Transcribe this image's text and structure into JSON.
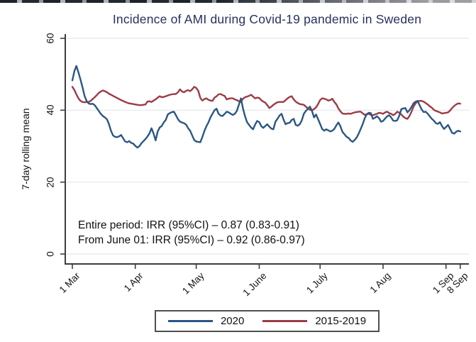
{
  "chart_data": {
    "type": "line",
    "title": "Incidence of AMI during Covid-19 pandemic in Sweden",
    "ylabel": "7-day rolling mean",
    "xlabel": "",
    "ylim": [
      0,
      60
    ],
    "y_ticks": [
      0,
      20,
      40,
      60
    ],
    "x_ticks": [
      {
        "label": "1 Mar",
        "day": 0
      },
      {
        "label": "1 Apr",
        "day": 31
      },
      {
        "label": "1 May",
        "day": 61
      },
      {
        "label": "1 June",
        "day": 92
      },
      {
        "label": "1 July",
        "day": 122
      },
      {
        "label": "1 Aug",
        "day": 153
      },
      {
        "label": "1 Sep",
        "day": 184
      },
      {
        "label": "8 Sep",
        "day": 191
      }
    ],
    "grid": true,
    "legend_position": "bottom",
    "annotations": [
      "Entire period: IRR (95%CI) – 0.87 (0.83-0.91)",
      "From June 01: IRR (95%CI) – 0.92 (0.86-0.97)"
    ],
    "series": [
      {
        "name": "2020",
        "color": "#2a5784",
        "day_start": 0,
        "values": [
          48.3,
          50.9,
          52.3,
          50.5,
          48.5,
          46.4,
          44.0,
          42.6,
          41.9,
          41.7,
          41.8,
          41.4,
          40.6,
          39.8,
          39.0,
          38.4,
          38.0,
          37.5,
          36.2,
          34.3,
          33.0,
          32.6,
          32.5,
          32.7,
          33.1,
          32.2,
          31.3,
          31.1,
          31.4,
          30.9,
          30.7,
          30.1,
          29.6,
          30.0,
          30.8,
          31.4,
          32.0,
          32.7,
          33.6,
          35.0,
          33.5,
          31.6,
          34.0,
          35.2,
          35.6,
          36.6,
          37.3,
          38.8,
          39.2,
          39.5,
          39.6,
          38.6,
          37.5,
          36.8,
          36.6,
          36.4,
          36.0,
          35.0,
          34.3,
          33.0,
          31.7,
          31.3,
          31.2,
          31.1,
          32.5,
          34.2,
          35.5,
          36.6,
          38.0,
          39.0,
          40.0,
          40.4,
          39.0,
          38.5,
          38.4,
          39.0,
          39.6,
          39.4,
          39.0,
          38.7,
          39.0,
          39.8,
          41.5,
          43.3,
          40.5,
          38.4,
          36.7,
          35.9,
          35.2,
          34.7,
          36.0,
          37.0,
          36.7,
          35.6,
          35.1,
          35.6,
          36.1,
          35.4,
          34.9,
          34.7,
          36.8,
          37.6,
          38.5,
          39.0,
          37.4,
          36.1,
          36.4,
          36.5,
          37.3,
          37.6,
          35.9,
          35.7,
          36.1,
          37.2,
          39.0,
          39.8,
          40.4,
          41.0,
          39.8,
          38.0,
          38.8,
          37.5,
          36.2,
          34.8,
          34.3,
          34.7,
          34.4,
          34.1,
          34.3,
          34.8,
          35.8,
          36.6,
          35.5,
          34.0,
          33.3,
          32.6,
          32.3,
          31.6,
          31.2,
          31.7,
          32.4,
          33.5,
          34.8,
          36.2,
          37.8,
          38.9,
          39.3,
          39.2,
          37.6,
          37.9,
          38.3,
          37.8,
          36.8,
          37.0,
          37.7,
          38.3,
          38.6,
          38.0,
          37.1,
          37.0,
          37.2,
          38.5,
          40.3,
          40.5,
          40.6,
          39.4,
          40.0,
          40.9,
          41.9,
          42.4,
          42.6,
          41.4,
          40.2,
          39.5,
          39.6,
          39.0,
          38.3,
          37.6,
          37.1,
          36.4,
          36.2,
          36.7,
          35.6,
          34.8,
          35.3,
          35.9,
          34.8,
          33.7,
          33.5,
          34.0,
          34.3,
          34.1
        ]
      },
      {
        "name": "2015-2019",
        "color": "#9c3b45",
        "day_start": 0,
        "values": [
          46.5,
          45.6,
          44.4,
          43.3,
          42.6,
          42.3,
          42.2,
          42.3,
          42.3,
          42.6,
          43.1,
          43.6,
          44.2,
          44.8,
          45.2,
          45.5,
          45.3,
          45.0,
          44.6,
          44.3,
          44.0,
          43.7,
          43.4,
          43.1,
          42.8,
          42.6,
          42.3,
          42.1,
          41.9,
          41.8,
          41.7,
          41.6,
          41.5,
          41.4,
          41.4,
          41.5,
          41.6,
          42.4,
          42.5,
          42.3,
          42.7,
          43.0,
          43.5,
          43.9,
          43.6,
          43.7,
          43.9,
          44.1,
          44.3,
          44.4,
          44.5,
          44.5,
          45.0,
          45.8,
          45.2,
          45.0,
          45.4,
          45.6,
          45.3,
          45.8,
          46.5,
          46.2,
          45.4,
          43.4,
          42.7,
          43.1,
          43.3,
          42.9,
          42.7,
          42.6,
          43.5,
          43.9,
          44.4,
          44.5,
          44.2,
          44.0,
          43.0,
          43.2,
          43.3,
          43.3,
          43.0,
          42.8,
          42.5,
          42.3,
          43.2,
          43.6,
          43.8,
          44.0,
          44.3,
          43.8,
          43.3,
          43.5,
          43.4,
          42.8,
          42.4,
          42.1,
          41.4,
          40.6,
          41.0,
          41.5,
          41.9,
          42.2,
          42.3,
          42.3,
          42.3,
          42.8,
          43.3,
          43.7,
          43.9,
          43.0,
          42.4,
          42.0,
          41.7,
          41.6,
          41.5,
          41.0,
          40.5,
          40.1,
          40.0,
          40.3,
          40.8,
          41.7,
          42.8,
          43.3,
          43.2,
          43.0,
          42.7,
          42.8,
          43.2,
          42.3,
          41.6,
          40.5,
          39.7,
          39.1,
          39.0,
          39.0,
          39.1,
          39.0,
          39.2,
          39.4,
          39.5,
          39.6,
          39.6,
          39.1,
          38.7,
          38.9,
          39.0,
          38.7,
          38.6,
          38.8,
          39.0,
          39.3,
          39.2,
          39.0,
          39.4,
          39.6,
          39.2,
          39.0,
          38.6,
          39.0,
          39.6,
          39.3,
          38.8,
          38.2,
          37.8,
          37.6,
          38.4,
          39.6,
          41.0,
          41.9,
          42.5,
          42.6,
          42.6,
          42.4,
          42.0,
          41.6,
          41.1,
          40.7,
          40.1,
          39.8,
          39.6,
          39.4,
          39.1,
          39.2,
          39.3,
          39.4,
          39.9,
          40.6,
          41.2,
          41.6,
          41.9,
          41.8
        ]
      }
    ]
  }
}
